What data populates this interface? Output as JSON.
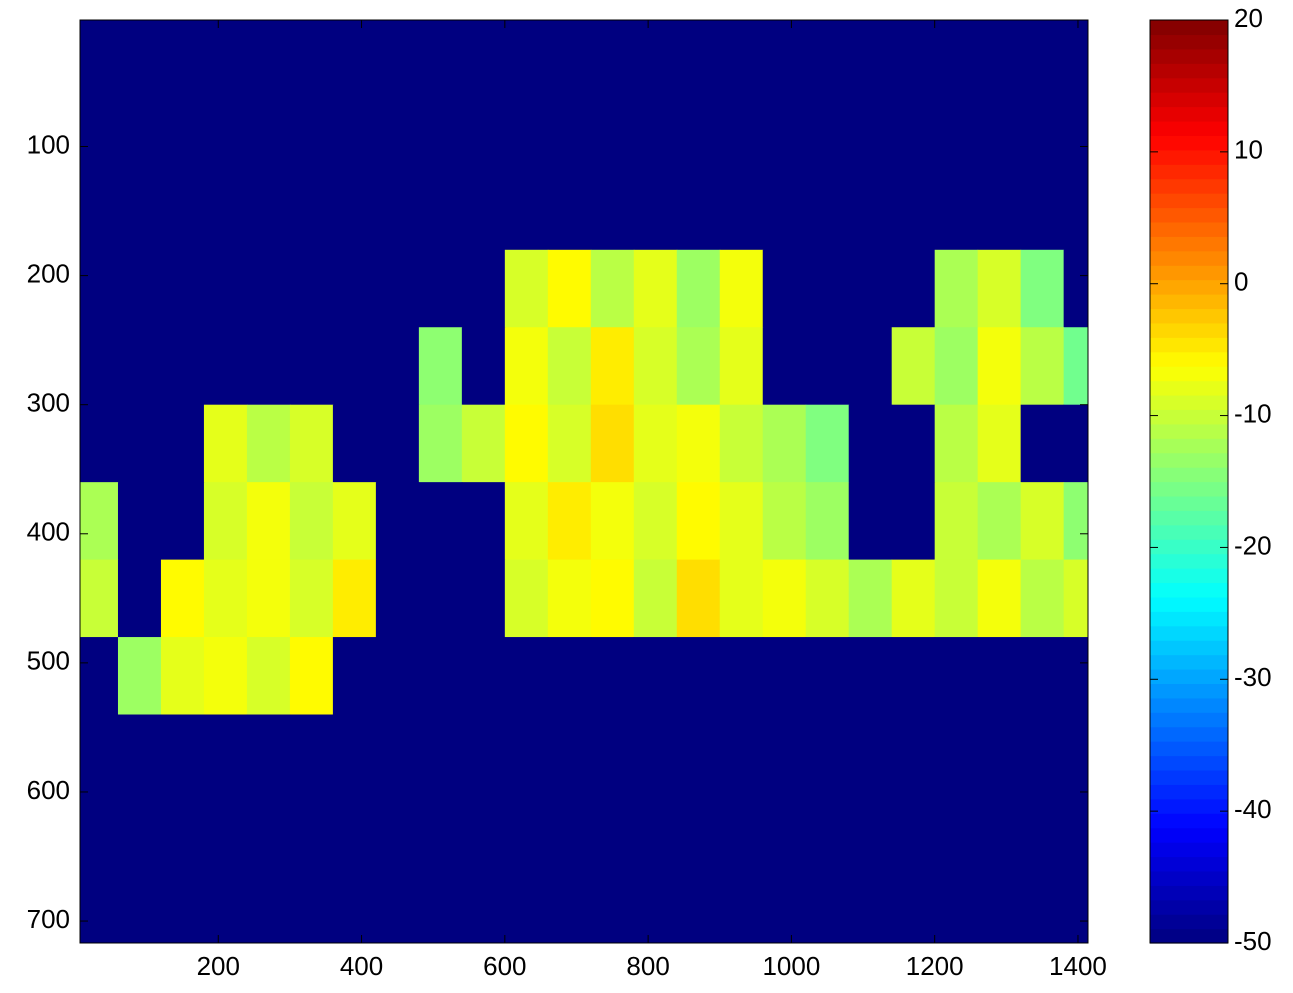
{
  "chart_data": {
    "type": "heatmap",
    "x": [
      30,
      90,
      150,
      210,
      270,
      330,
      390,
      450,
      510,
      570,
      630,
      690,
      750,
      810,
      870,
      930,
      990,
      1050,
      1110,
      1170,
      1230,
      1290,
      1350,
      1410
    ],
    "y": [
      30,
      90,
      150,
      210,
      270,
      330,
      390,
      450,
      510,
      570,
      630,
      690
    ],
    "z": [
      [
        -50,
        -50,
        -50,
        -50,
        -50,
        -50,
        -50,
        -50,
        -50,
        -50,
        -50,
        -50,
        -50,
        -50,
        -50,
        -50,
        -50,
        -50,
        -50,
        -50,
        -50,
        -50,
        -50,
        -50
      ],
      [
        -50,
        -50,
        -50,
        -50,
        -50,
        -50,
        -50,
        -50,
        -50,
        -50,
        -50,
        -50,
        -50,
        -50,
        -50,
        -50,
        -50,
        -50,
        -50,
        -50,
        -50,
        -50,
        -50,
        -50
      ],
      [
        -50,
        -50,
        -50,
        -50,
        -50,
        -50,
        -50,
        -50,
        -50,
        -50,
        -50,
        -50,
        -50,
        -50,
        -50,
        -50,
        -50,
        -50,
        -50,
        -50,
        -50,
        -50,
        -50,
        -50
      ],
      [
        -50,
        -50,
        -50,
        -50,
        -50,
        -50,
        -50,
        -50,
        -50,
        -50,
        -9,
        -6,
        -11,
        -8,
        -13,
        -7,
        -50,
        -50,
        -50,
        -50,
        -12,
        -9,
        -15,
        -50
      ],
      [
        -50,
        -50,
        -50,
        -50,
        -50,
        -50,
        -50,
        -50,
        -14,
        -50,
        -7,
        -10,
        -5,
        -9,
        -12,
        -8,
        -50,
        -50,
        -50,
        -10,
        -13,
        -7,
        -11,
        -16
      ],
      [
        -50,
        -50,
        -50,
        -8,
        -11,
        -9,
        -50,
        -50,
        -13,
        -10,
        -6,
        -9,
        -4,
        -8,
        -7,
        -10,
        -12,
        -15,
        -50,
        -50,
        -11,
        -8,
        -50,
        -50
      ],
      [
        -12,
        -50,
        -50,
        -9,
        -7,
        -10,
        -8,
        -50,
        -50,
        -50,
        -8,
        -5,
        -7,
        -9,
        -6,
        -8,
        -11,
        -13,
        -50,
        -50,
        -10,
        -12,
        -9,
        -14
      ],
      [
        -10,
        -50,
        -6,
        -8,
        -7,
        -9,
        -5,
        -50,
        -50,
        -50,
        -9,
        -7,
        -6,
        -10,
        -4,
        -8,
        -7,
        -9,
        -12,
        -8,
        -10,
        -7,
        -11,
        -9
      ],
      [
        -50,
        -13,
        -8,
        -7,
        -9,
        -6,
        -50,
        -50,
        -50,
        -50,
        -50,
        -50,
        -50,
        -50,
        -50,
        -50,
        -50,
        -50,
        -50,
        -50,
        -50,
        -50,
        -50,
        -50
      ],
      [
        -50,
        -50,
        -50,
        -50,
        -50,
        -50,
        -50,
        -50,
        -50,
        -50,
        -50,
        -50,
        -50,
        -50,
        -50,
        -50,
        -50,
        -50,
        -50,
        -50,
        -50,
        -50,
        -50,
        -50
      ],
      [
        -50,
        -50,
        -50,
        -50,
        -50,
        -50,
        -50,
        -50,
        -50,
        -50,
        -50,
        -50,
        -50,
        -50,
        -50,
        -50,
        -50,
        -50,
        -50,
        -50,
        -50,
        -50,
        -50,
        -50
      ],
      [
        -50,
        -50,
        -50,
        -50,
        -50,
        -50,
        -50,
        -50,
        -50,
        -50,
        -50,
        -50,
        -50,
        -50,
        -50,
        -50,
        -50,
        -50,
        -50,
        -50,
        -50,
        -50,
        -50,
        -50
      ]
    ],
    "xlim": [
      7,
      1414
    ],
    "ylim": [
      2,
      717
    ],
    "y_reversed": true,
    "xticks": [
      200,
      400,
      600,
      800,
      1000,
      1200,
      1400
    ],
    "yticks": [
      100,
      200,
      300,
      400,
      500,
      600,
      700
    ],
    "colormap": "jet",
    "clim": [
      -50,
      20
    ],
    "colorbar_ticks": [
      -50,
      -40,
      -30,
      -20,
      -10,
      0,
      10,
      20
    ]
  }
}
